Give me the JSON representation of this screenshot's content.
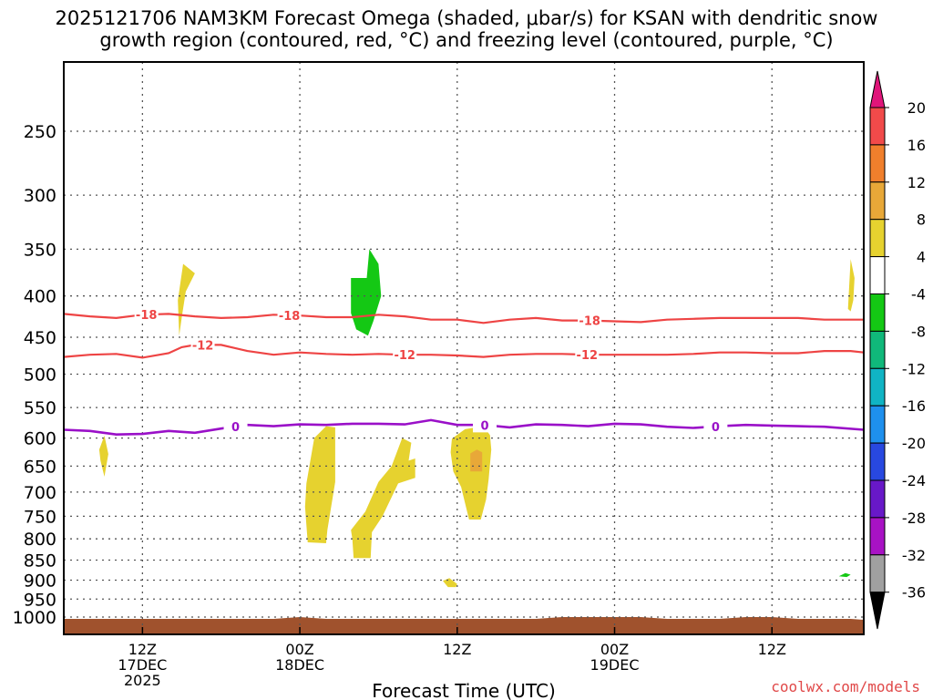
{
  "chart_data": {
    "type": "heatmap",
    "title_line1": "2025121706 NAM3KM Forecast Omega (shaded, μbar/s) for KSAN with dendritic snow",
    "title_line2": "growth region (contoured, red, °C) and freezing level (contoured, purple, °C)",
    "xlabel": "Forecast Time (UTC)",
    "x_unit": "forecast hour from 2025121706",
    "xlim": [
      0,
      61
    ],
    "x_ticks": [
      {
        "hour": 6,
        "lines": [
          "12Z",
          "17DEC",
          "2025"
        ]
      },
      {
        "hour": 18,
        "lines": [
          "00Z",
          "18DEC"
        ]
      },
      {
        "hour": 30,
        "lines": [
          "12Z"
        ]
      },
      {
        "hour": 42,
        "lines": [
          "00Z",
          "19DEC"
        ]
      },
      {
        "hour": 54,
        "lines": [
          "12Z"
        ]
      }
    ],
    "ylabel": "",
    "y_unit": "hPa",
    "y_ticks": [
      250,
      300,
      350,
      400,
      450,
      500,
      550,
      600,
      650,
      700,
      750,
      800,
      850,
      900,
      950,
      1000
    ],
    "y_gridlines": [
      250,
      300,
      350,
      400,
      450,
      500,
      550,
      600,
      650,
      700,
      750,
      800,
      850,
      900,
      950,
      1000
    ],
    "colorbar": {
      "labels": [
        "20",
        "16",
        "12",
        "8",
        "4",
        "-4",
        "-8",
        "-12",
        "-16",
        "-20",
        "-24",
        "-28",
        "-32",
        "-36"
      ],
      "bins": [
        {
          "from": 20,
          "to": null,
          "color": "#e0157a"
        },
        {
          "from": 16,
          "to": 20,
          "color": "#f14a4a"
        },
        {
          "from": 12,
          "to": 16,
          "color": "#f07f2c"
        },
        {
          "from": 8,
          "to": 12,
          "color": "#e8a838"
        },
        {
          "from": 4,
          "to": 8,
          "color": "#e6d22f"
        },
        {
          "from": -4,
          "to": 4,
          "color": "#ffffff"
        },
        {
          "from": -8,
          "to": -4,
          "color": "#14c814"
        },
        {
          "from": -12,
          "to": -8,
          "color": "#10b87a"
        },
        {
          "from": -16,
          "to": -12,
          "color": "#10b4c4"
        },
        {
          "from": -20,
          "to": -16,
          "color": "#1e90ee"
        },
        {
          "from": -24,
          "to": -20,
          "color": "#2848e0"
        },
        {
          "from": -28,
          "to": -24,
          "color": "#6818c8"
        },
        {
          "from": -32,
          "to": -28,
          "color": "#a812c4"
        },
        {
          "from": -36,
          "to": -32,
          "color": "#a0a0a0"
        },
        {
          "from": null,
          "to": -36,
          "color": "#000000"
        }
      ]
    },
    "contours": [
      {
        "name": "dgz-minus18",
        "value": -18,
        "color": "#ee4444",
        "label_hours": [
          6.3,
          17.2,
          40.1
        ],
        "points": [
          [
            0,
            421
          ],
          [
            2,
            424
          ],
          [
            4,
            426
          ],
          [
            6,
            422
          ],
          [
            8,
            421
          ],
          [
            10,
            424
          ],
          [
            12,
            426
          ],
          [
            14,
            425
          ],
          [
            16,
            422
          ],
          [
            18,
            423
          ],
          [
            20,
            425
          ],
          [
            22,
            425
          ],
          [
            24,
            422
          ],
          [
            26,
            424
          ],
          [
            28,
            428
          ],
          [
            30,
            428
          ],
          [
            32,
            432
          ],
          [
            34,
            428
          ],
          [
            36,
            426
          ],
          [
            38,
            429
          ],
          [
            40,
            429
          ],
          [
            42,
            430
          ],
          [
            44,
            431
          ],
          [
            46,
            428
          ],
          [
            48,
            427
          ],
          [
            50,
            426
          ],
          [
            52,
            426
          ],
          [
            54,
            426
          ],
          [
            56,
            426
          ],
          [
            58,
            428
          ],
          [
            61,
            428
          ]
        ]
      },
      {
        "name": "dgz-minus12",
        "value": -12,
        "color": "#ee4444",
        "label_hours": [
          10.6,
          26.0,
          39.9
        ],
        "points": [
          [
            0,
            476
          ],
          [
            2,
            473
          ],
          [
            4,
            472
          ],
          [
            6,
            477
          ],
          [
            8,
            471
          ],
          [
            9,
            463
          ],
          [
            10,
            460
          ],
          [
            12,
            460
          ],
          [
            14,
            468
          ],
          [
            16,
            473
          ],
          [
            18,
            470
          ],
          [
            20,
            472
          ],
          [
            22,
            473
          ],
          [
            24,
            472
          ],
          [
            26,
            473
          ],
          [
            28,
            473
          ],
          [
            30,
            474
          ],
          [
            32,
            476
          ],
          [
            34,
            473
          ],
          [
            36,
            472
          ],
          [
            38,
            472
          ],
          [
            40,
            473
          ],
          [
            42,
            473
          ],
          [
            44,
            473
          ],
          [
            46,
            473
          ],
          [
            48,
            472
          ],
          [
            50,
            470
          ],
          [
            52,
            470
          ],
          [
            54,
            471
          ],
          [
            56,
            471
          ],
          [
            58,
            468
          ],
          [
            60,
            468
          ],
          [
            61,
            470
          ]
        ]
      },
      {
        "name": "freezing-level",
        "value": 0,
        "color": "#9a10c8",
        "label_hours": [
          13.1,
          32.1,
          49.7
        ],
        "points": [
          [
            0,
            586
          ],
          [
            2,
            588
          ],
          [
            4,
            594
          ],
          [
            6,
            593
          ],
          [
            8,
            588
          ],
          [
            10,
            591
          ],
          [
            12,
            584
          ],
          [
            14,
            578
          ],
          [
            16,
            580
          ],
          [
            18,
            577
          ],
          [
            20,
            578
          ],
          [
            22,
            576
          ],
          [
            24,
            576
          ],
          [
            26,
            577
          ],
          [
            28,
            570
          ],
          [
            30,
            578
          ],
          [
            32,
            578
          ],
          [
            34,
            582
          ],
          [
            36,
            577
          ],
          [
            38,
            578
          ],
          [
            40,
            580
          ],
          [
            42,
            576
          ],
          [
            44,
            577
          ],
          [
            46,
            581
          ],
          [
            48,
            583
          ],
          [
            50,
            580
          ],
          [
            52,
            578
          ],
          [
            54,
            579
          ],
          [
            56,
            580
          ],
          [
            58,
            581
          ],
          [
            61,
            586
          ]
        ]
      }
    ],
    "shaded_regions": [
      {
        "name": "omega-yellow-1",
        "bin": "4 to 8",
        "color": "#e6d22f",
        "points": [
          [
            8.7,
            405
          ],
          [
            9.1,
            365
          ],
          [
            10.0,
            375
          ],
          [
            9.3,
            395
          ],
          [
            9.0,
            425
          ],
          [
            8.8,
            448
          ]
        ]
      },
      {
        "name": "omega-yellow-2",
        "bin": "4 to 8",
        "color": "#e6d22f",
        "points": [
          [
            2.7,
            620
          ],
          [
            3.1,
            596
          ],
          [
            3.4,
            628
          ],
          [
            3.1,
            670
          ],
          [
            2.8,
            640
          ]
        ]
      },
      {
        "name": "omega-yellow-3",
        "bin": "4 to 8",
        "color": "#e6d22f",
        "points": [
          [
            18.5,
            683
          ],
          [
            19.1,
            600
          ],
          [
            20.0,
            580
          ],
          [
            20.7,
            582
          ],
          [
            20.7,
            680
          ],
          [
            20.1,
            780
          ],
          [
            20.0,
            810
          ],
          [
            18.6,
            808
          ],
          [
            18.4,
            730
          ]
        ]
      },
      {
        "name": "omega-yellow-4",
        "bin": "4 to 8",
        "color": "#e6d22f",
        "points": [
          [
            21.9,
            780
          ],
          [
            23.0,
            740
          ],
          [
            24.0,
            680
          ],
          [
            25.0,
            650
          ],
          [
            25.8,
            600
          ],
          [
            26.5,
            608
          ],
          [
            26.3,
            640
          ],
          [
            26.8,
            636
          ],
          [
            26.8,
            672
          ],
          [
            25.5,
            683
          ],
          [
            24.3,
            750
          ],
          [
            23.5,
            785
          ],
          [
            23.4,
            845
          ],
          [
            22.1,
            845
          ],
          [
            22.0,
            800
          ]
        ]
      },
      {
        "name": "omega-yellow-5",
        "bin": "4 to 8",
        "color": "#e6d22f",
        "points": [
          [
            29.6,
            601
          ],
          [
            30.6,
            585
          ],
          [
            32.0,
            580
          ],
          [
            32.5,
            595
          ],
          [
            32.6,
            620
          ],
          [
            32.4,
            675
          ],
          [
            32.2,
            715
          ],
          [
            31.8,
            757
          ],
          [
            30.9,
            757
          ],
          [
            30.3,
            690
          ],
          [
            29.7,
            660
          ],
          [
            29.5,
            625
          ]
        ]
      },
      {
        "name": "omega-yellow-6",
        "bin": "4 to 8",
        "color": "#e6d22f",
        "points": [
          [
            28.9,
            902
          ],
          [
            29.4,
            895
          ],
          [
            30.0,
            910
          ],
          [
            29.9,
            918
          ],
          [
            29.3,
            918
          ]
        ]
      },
      {
        "name": "omega-yellow-7",
        "bin": "4 to 8",
        "color": "#e6d22f",
        "points": [
          [
            59.8,
            415
          ],
          [
            60.0,
            360
          ],
          [
            60.3,
            380
          ],
          [
            60.2,
            405
          ],
          [
            60.0,
            418
          ]
        ]
      },
      {
        "name": "omega-orange-1",
        "bin": "8 to 12",
        "color": "#e8a838",
        "points": [
          [
            31.0,
            627
          ],
          [
            31.5,
            620
          ],
          [
            31.9,
            625
          ],
          [
            31.9,
            660
          ],
          [
            31.0,
            660
          ]
        ]
      },
      {
        "name": "omega-green-1",
        "bin": "-8 to -4",
        "color": "#14c814",
        "points": [
          [
            21.9,
            380
          ],
          [
            23.1,
            380
          ],
          [
            23.3,
            350
          ],
          [
            24.0,
            365
          ],
          [
            24.2,
            400
          ],
          [
            23.6,
            430
          ],
          [
            23.2,
            448
          ],
          [
            22.3,
            440
          ],
          [
            21.9,
            420
          ]
        ]
      },
      {
        "name": "omega-green-2",
        "bin": "-8 to -4",
        "color": "#14c814",
        "points": [
          [
            59.1,
            890
          ],
          [
            59.6,
            882
          ],
          [
            60.0,
            886
          ],
          [
            59.7,
            892
          ]
        ]
      }
    ],
    "surface_terrain": {
      "name": "ground-below-surface",
      "color": "#a0522d",
      "near_pressure_hPa": 1000
    }
  },
  "credit": "coolwx.com/models"
}
